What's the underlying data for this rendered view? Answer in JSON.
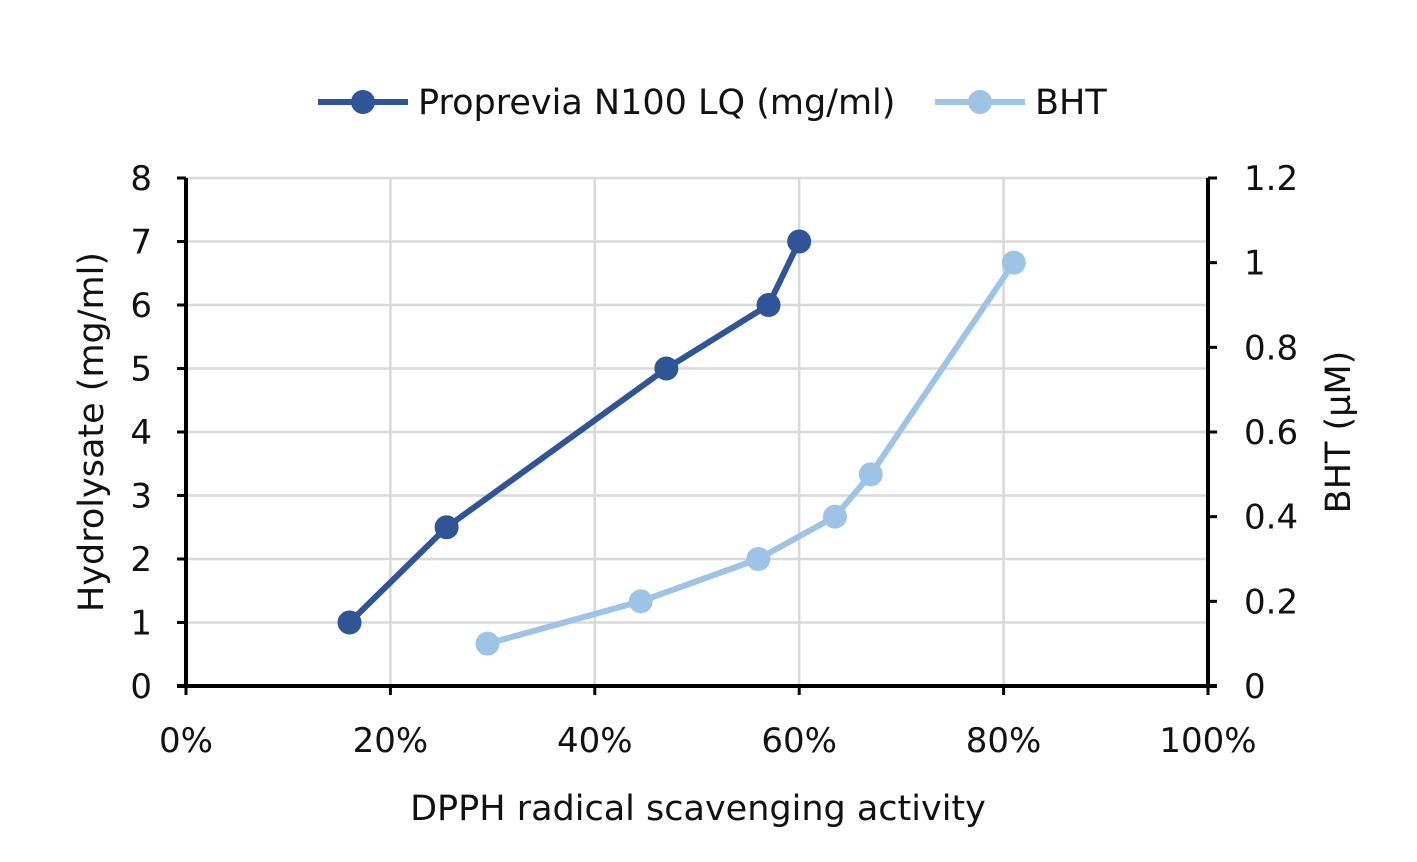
{
  "chart_data": {
    "type": "scatter",
    "mode": "lines+markers",
    "xlabel": "DPPH radical scavenging activity",
    "ylabel": "Hydrolysate (mg/ml)",
    "y2label": "BHT (µM)",
    "xlim": [
      0,
      1
    ],
    "ylim": [
      0,
      8
    ],
    "y2lim": [
      0,
      1.2
    ],
    "x_tick_labels": [
      "0%",
      "20%",
      "40%",
      "60%",
      "80%",
      "100%"
    ],
    "y_tick_labels": [
      "0",
      "1",
      "2",
      "3",
      "4",
      "5",
      "6",
      "7",
      "8"
    ],
    "y2_tick_labels": [
      "0",
      "0.2",
      "0.4",
      "0.6",
      "0.8",
      "1",
      "1.2"
    ],
    "grid": true,
    "legend_position": "top",
    "series": [
      {
        "name": "Proprevia N100 LQ (mg/ml)",
        "axis": "left",
        "color": "#2F5597",
        "x": [
          0.16,
          0.255,
          0.47,
          0.57,
          0.6
        ],
        "y": [
          1,
          2.5,
          5,
          6,
          7
        ]
      },
      {
        "name": "BHT",
        "axis": "right",
        "color": "#9DC3E6",
        "x": [
          0.295,
          0.445,
          0.56,
          0.635,
          0.67,
          0.81
        ],
        "y": [
          0.1,
          0.2,
          0.3,
          0.4,
          0.5,
          1.0
        ]
      }
    ]
  }
}
